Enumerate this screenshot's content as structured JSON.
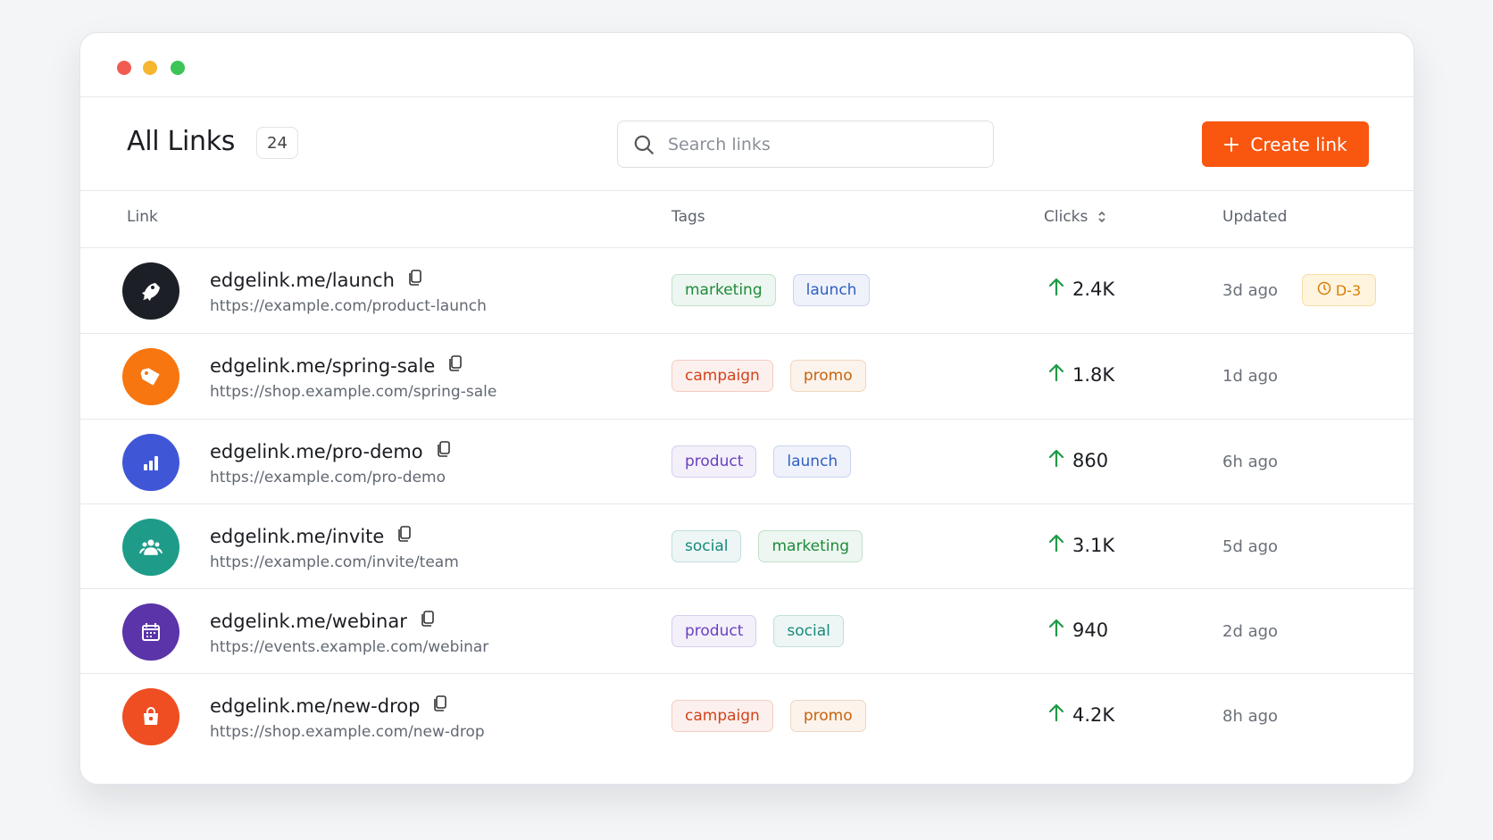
{
  "header": {
    "title": "All Links",
    "count": "24",
    "search_placeholder": "Search links",
    "button": "Create link"
  },
  "table": {
    "columns": [
      "Link",
      "Tags",
      "Clicks",
      "Updated"
    ],
    "rows": [
      {
        "name": "edgelink.me/launch",
        "url": "https://example.com/product-launch",
        "tags": [
          {
            "label": "marketing",
            "color": "#1f8a3b"
          },
          {
            "label": "launch",
            "color": "#2f5fc4"
          }
        ],
        "clicks": "2.4K",
        "updated": "3d ago",
        "badge": "D-3"
      },
      {
        "name": "edgelink.me/spring-sale",
        "url": "https://shop.example.com/spring-sale",
        "tags": [
          {
            "label": "campaign",
            "color": "#d2421b"
          },
          {
            "label": "promo",
            "color": "#c8630c"
          }
        ],
        "clicks": "1.8K",
        "updated": "1d ago"
      },
      {
        "name": "edgelink.me/pro-demo",
        "url": "https://example.com/pro-demo",
        "tags": [
          {
            "label": "product",
            "color": "#6b3fc0"
          },
          {
            "label": "launch",
            "color": "#2f5fc4"
          }
        ],
        "clicks": "860",
        "updated": "6h ago"
      },
      {
        "name": "edgelink.me/invite",
        "url": "https://example.com/invite/team",
        "tags": [
          {
            "label": "social",
            "color": "#17897a"
          },
          {
            "label": "marketing",
            "color": "#1f8a3b"
          }
        ],
        "clicks": "3.1K",
        "updated": "5d ago"
      },
      {
        "name": "edgelink.me/webinar",
        "url": "https://events.example.com/webinar",
        "tags": [
          {
            "label": "product",
            "color": "#6b3fc0"
          },
          {
            "label": "social",
            "color": "#17897a"
          }
        ],
        "clicks": "940",
        "updated": "2d ago"
      },
      {
        "name": "edgelink.me/new-drop",
        "url": "https://shop.example.com/new-drop",
        "tags": [
          {
            "label": "campaign",
            "color": "#d2421b"
          },
          {
            "label": "promo",
            "color": "#c8630c"
          }
        ],
        "clicks": "4.2K",
        "updated": "8h ago"
      }
    ]
  }
}
